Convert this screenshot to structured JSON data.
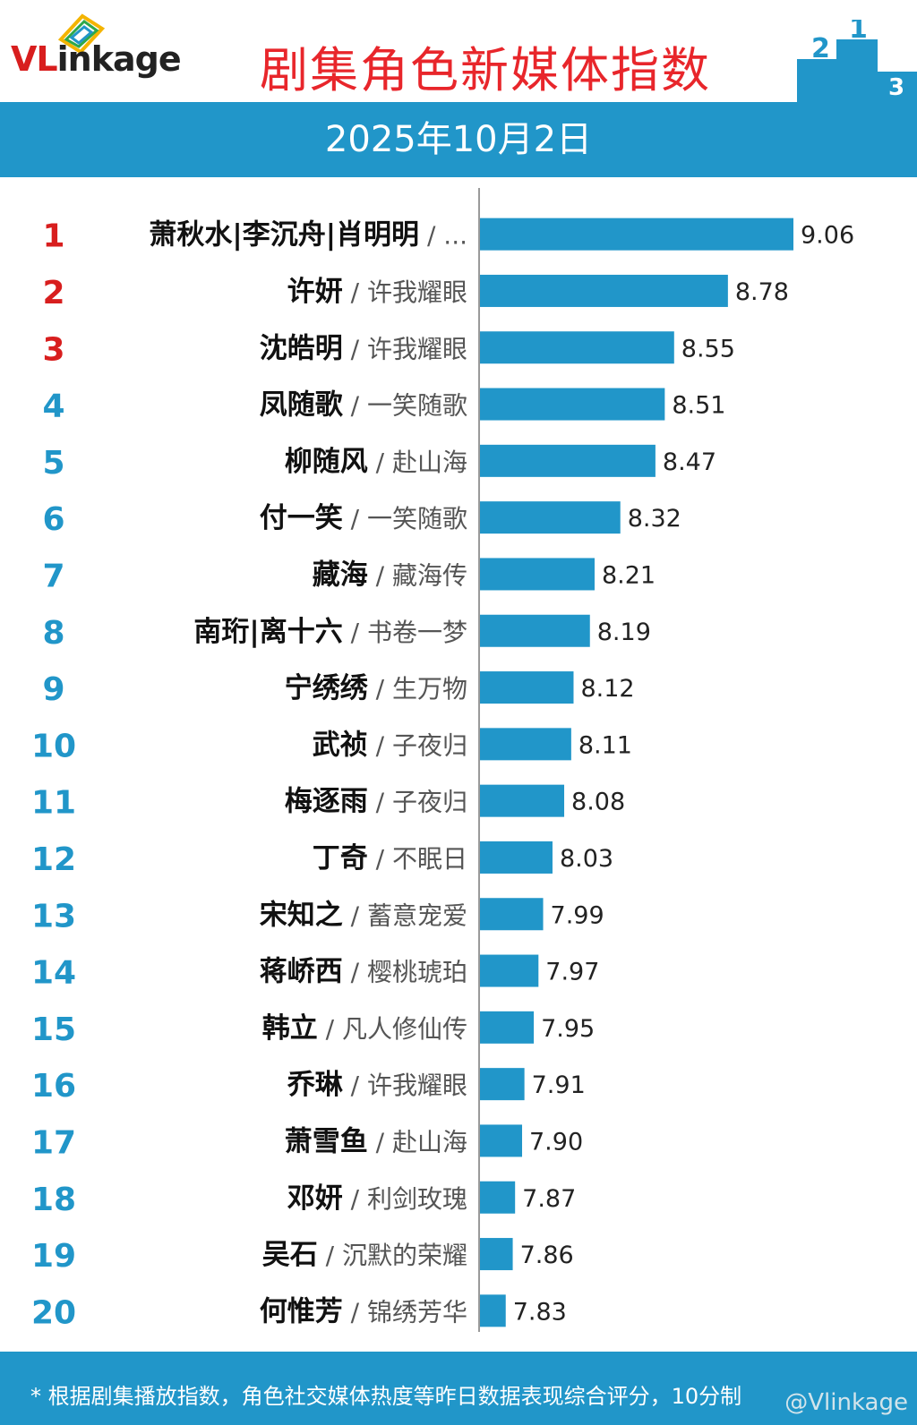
{
  "header": {
    "logo_text_v": "VL",
    "logo_text_rest": "inkage",
    "title": "剧集角色新媒体指数",
    "podium_numbers": [
      "2",
      "1",
      "3"
    ]
  },
  "date": "2025年10月2日",
  "colors": {
    "accent": "#2196c9",
    "title_red": "#e8262b",
    "rank_red": "#d81e1e",
    "rank_blue": "#2196c9",
    "bar": "#2196c9"
  },
  "chart_data": {
    "type": "bar",
    "orientation": "horizontal",
    "title": "剧集角色新媒体指数",
    "ranks": [
      "1",
      "2",
      "3",
      "4",
      "5",
      "6",
      "7",
      "8",
      "9",
      "10",
      "11",
      "12",
      "13",
      "14",
      "15",
      "16",
      "17",
      "18",
      "19",
      "20"
    ],
    "characters": [
      "萧秋水|李沉舟|肖明明",
      "许妍",
      "沈皓明",
      "凤随歌",
      "柳随风",
      "付一笑",
      "藏海",
      "南珩|离十六",
      "宁绣绣",
      "武祯",
      "梅逐雨",
      "丁奇",
      "宋知之",
      "蒋峤西",
      "韩立",
      "乔琳",
      "萧雪鱼",
      "邓妍",
      "吴石",
      "何惟芳"
    ],
    "shows": [
      "...",
      "许我耀眼",
      "许我耀眼",
      "一笑随歌",
      "赴山海",
      "一笑随歌",
      "藏海传",
      "书卷一梦",
      "生万物",
      "子夜归",
      "子夜归",
      "不眠日",
      "蓄意宠爱",
      "樱桃琥珀",
      "凡人修仙传",
      "许我耀眼",
      "赴山海",
      "利剑玫瑰",
      "沉默的荣耀",
      "锦绣芳华"
    ],
    "values": [
      9.06,
      8.78,
      8.55,
      8.51,
      8.47,
      8.32,
      8.21,
      8.19,
      8.12,
      8.11,
      8.08,
      8.03,
      7.99,
      7.97,
      7.95,
      7.91,
      7.9,
      7.87,
      7.86,
      7.83
    ],
    "value_labels": [
      "9.06",
      "8.78",
      "8.55",
      "8.51",
      "8.47",
      "8.32",
      "8.21",
      "8.19",
      "8.12",
      "8.11",
      "8.08",
      "8.03",
      "7.99",
      "7.97",
      "7.95",
      "7.91",
      "7.90",
      "7.87",
      "7.86",
      "7.83"
    ],
    "xlim": [
      7.72,
      9.06
    ],
    "grid": false
  },
  "footer": {
    "note": "* 根据剧集播放指数，角色社交媒体热度等昨日数据表现综合评分，10分制",
    "watermark": "@Vlinkage"
  }
}
